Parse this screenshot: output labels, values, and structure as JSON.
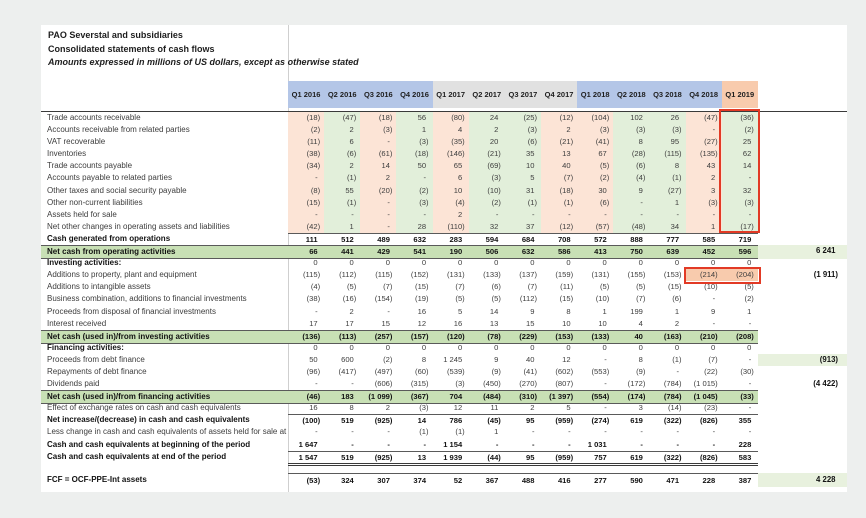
{
  "report": {
    "title": "PAO Severstal and subsidiaries",
    "subtitle": "Consolidated statements of cash flows",
    "note": "Amounts expressed in millions of US dollars, except as otherwise stated"
  },
  "colors": {
    "header_2016_2018": "#b4c6e7",
    "header_2017": "#e1e1e1",
    "header_q1_2019": "#f8cbad",
    "column_tint_pink": "#fce4d6",
    "column_tint_green": "#e2efda",
    "net_cash_band_green": "#c8e0b5",
    "total_cell_tint": "#e8f1de",
    "highlight_cell_peach": "#f8cbad",
    "annotation_red": "#e23a25"
  },
  "table": {
    "columns": [
      "Q1 2016",
      "Q2 2016",
      "Q3 2016",
      "Q4 2016",
      "Q1 2017",
      "Q2 2017",
      "Q3 2017",
      "Q4 2017",
      "Q1 2018",
      "Q2 2018",
      "Q3 2018",
      "Q4 2018",
      "Q1 2019"
    ],
    "column_groups": [
      "blue",
      "blue",
      "blue",
      "blue",
      "gray",
      "gray",
      "gray",
      "gray",
      "blue",
      "blue",
      "blue",
      "blue",
      "peach"
    ],
    "wc_column_tints": [
      "p",
      "g",
      "p",
      "g",
      "p",
      "g",
      "g",
      "p",
      "p",
      "g",
      "g",
      "p",
      "g"
    ],
    "rows": [
      {
        "label": "Trade accounts receivable",
        "kind": "wc",
        "values": [
          "(18)",
          "(47)",
          "(18)",
          "56",
          "(80)",
          "24",
          "(25)",
          "(12)",
          "(104)",
          "102",
          "26",
          "(47)",
          "(36)"
        ],
        "total": ""
      },
      {
        "label": "Accounts receivable from related parties",
        "kind": "wc",
        "values": [
          "(2)",
          "2",
          "(3)",
          "1",
          "4",
          "2",
          "(3)",
          "2",
          "(3)",
          "(3)",
          "(3)",
          "-",
          "(2)"
        ],
        "total": ""
      },
      {
        "label": "VAT recoverable",
        "kind": "wc",
        "values": [
          "(11)",
          "6",
          "-",
          "(3)",
          "(35)",
          "20",
          "(6)",
          "(21)",
          "(41)",
          "8",
          "95",
          "(27)",
          "25"
        ],
        "total": ""
      },
      {
        "label": "Inventories",
        "kind": "wc",
        "values": [
          "(38)",
          "(6)",
          "(61)",
          "(18)",
          "(146)",
          "(21)",
          "35",
          "13",
          "67",
          "(28)",
          "(115)",
          "(135)",
          "62"
        ],
        "total": ""
      },
      {
        "label": "Trade accounts payable",
        "kind": "wc",
        "values": [
          "(34)",
          "2",
          "14",
          "50",
          "65",
          "(69)",
          "10",
          "40",
          "(5)",
          "(6)",
          "8",
          "43",
          "14"
        ],
        "total": ""
      },
      {
        "label": "Accounts payable to related parties",
        "kind": "wc",
        "values": [
          "-",
          "(1)",
          "2",
          "-",
          "6",
          "(3)",
          "5",
          "(7)",
          "(2)",
          "(4)",
          "(1)",
          "2",
          "-"
        ],
        "total": ""
      },
      {
        "label": "Other taxes and social security payable",
        "kind": "wc",
        "values": [
          "(8)",
          "55",
          "(20)",
          "(2)",
          "10",
          "(10)",
          "31",
          "(18)",
          "30",
          "9",
          "(27)",
          "3",
          "32"
        ],
        "total": ""
      },
      {
        "label": "Other non-current liabilities",
        "kind": "wc",
        "values": [
          "(15)",
          "(1)",
          "-",
          "(3)",
          "(4)",
          "(2)",
          "(1)",
          "(1)",
          "(6)",
          "-",
          "1",
          "(3)",
          "(3)"
        ],
        "total": ""
      },
      {
        "label": "Assets held for sale",
        "kind": "wc",
        "values": [
          "-",
          "-",
          "-",
          "-",
          "2",
          "-",
          "-",
          "-",
          "-",
          "-",
          "-",
          "-",
          "-"
        ],
        "total": ""
      },
      {
        "label": "Net other changes in operating assets and liabilities",
        "kind": "wc",
        "values": [
          "(42)",
          "1",
          "-",
          "28",
          "(110)",
          "32",
          "37",
          "(12)",
          "(57)",
          "(48)",
          "34",
          "1",
          "(17)"
        ],
        "total": ""
      },
      {
        "label": "Cash generated from operations",
        "kind": "calc",
        "values": [
          "111",
          "512",
          "489",
          "632",
          "283",
          "594",
          "684",
          "708",
          "572",
          "888",
          "777",
          "585",
          "719"
        ],
        "total": ""
      },
      {
        "label": "Net cash from operating activities",
        "kind": "band",
        "values": [
          "66",
          "441",
          "429",
          "541",
          "190",
          "506",
          "632",
          "586",
          "413",
          "750",
          "639",
          "452",
          "596"
        ],
        "total": "6 241",
        "total_tinted": true
      },
      {
        "label": "Investing activities:",
        "kind": "section",
        "values": [
          "0",
          "0",
          "0",
          "0",
          "0",
          "0",
          "0",
          "0",
          "0",
          "0",
          "0",
          "0",
          "0"
        ],
        "total": ""
      },
      {
        "label": "Additions to property, plant and equipment",
        "kind": "plain",
        "values": [
          "(115)",
          "(112)",
          "(115)",
          "(152)",
          "(131)",
          "(133)",
          "(137)",
          "(159)",
          "(131)",
          "(155)",
          "(153)",
          "(214)",
          "(204)"
        ],
        "total": "(1 911)",
        "highlight_columns": [
          11,
          12
        ]
      },
      {
        "label": "Additions to intangible assets",
        "kind": "plain",
        "values": [
          "(4)",
          "(5)",
          "(7)",
          "(15)",
          "(7)",
          "(6)",
          "(7)",
          "(11)",
          "(5)",
          "(5)",
          "(15)",
          "(10)",
          "(5)"
        ],
        "total": ""
      },
      {
        "label": "Business combination, additions to financial investments",
        "kind": "plain",
        "values": [
          "(38)",
          "(16)",
          "(154)",
          "(19)",
          "(5)",
          "(5)",
          "(112)",
          "(15)",
          "(10)",
          "(7)",
          "(6)",
          "-",
          "(2)"
        ],
        "total": ""
      },
      {
        "label": "Proceeds from disposal of financial investments",
        "kind": "plain",
        "values": [
          "-",
          "2",
          "-",
          "16",
          "5",
          "14",
          "9",
          "8",
          "1",
          "199",
          "1",
          "9",
          "1"
        ],
        "total": ""
      },
      {
        "label": "Interest received",
        "kind": "plain",
        "values": [
          "17",
          "17",
          "15",
          "12",
          "16",
          "13",
          "15",
          "10",
          "10",
          "4",
          "2",
          "-",
          "-"
        ],
        "total": ""
      },
      {
        "label": "Net cash (used in)/from investing activities",
        "kind": "band",
        "values": [
          "(136)",
          "(113)",
          "(257)",
          "(157)",
          "(120)",
          "(78)",
          "(229)",
          "(153)",
          "(133)",
          "40",
          "(163)",
          "(210)",
          "(208)"
        ],
        "total": ""
      },
      {
        "label": "Financing activities:",
        "kind": "section",
        "values": [
          "0",
          "0",
          "0",
          "0",
          "0",
          "0",
          "0",
          "0",
          "0",
          "0",
          "0",
          "0",
          "0"
        ],
        "total": ""
      },
      {
        "label": "Proceeds from debt finance",
        "kind": "plain",
        "values": [
          "50",
          "600",
          "(2)",
          "8",
          "1 245",
          "9",
          "40",
          "12",
          "-",
          "8",
          "(1)",
          "(7)",
          "-"
        ],
        "total": "(913)",
        "total_tinted": true
      },
      {
        "label": "Repayments of debt finance",
        "kind": "plain",
        "values": [
          "(96)",
          "(417)",
          "(497)",
          "(60)",
          "(539)",
          "(9)",
          "(41)",
          "(602)",
          "(553)",
          "(9)",
          "-",
          "(22)",
          "(30)"
        ],
        "total": ""
      },
      {
        "label": "Dividends paid",
        "kind": "plain",
        "values": [
          "-",
          "-",
          "(606)",
          "(315)",
          "(3)",
          "(450)",
          "(270)",
          "(807)",
          "-",
          "(172)",
          "(784)",
          "(1 015)",
          "-"
        ],
        "total": "(4 422)"
      },
      {
        "label": "Net cash (used in)/from financing activities",
        "kind": "band",
        "values": [
          "(46)",
          "183",
          "(1 099)",
          "(367)",
          "704",
          "(484)",
          "(310)",
          "(1 397)",
          "(554)",
          "(174)",
          "(784)",
          "(1 045)",
          "(33)"
        ],
        "total": ""
      },
      {
        "label": "Effect of exchange rates on cash and cash equivalents",
        "kind": "plain",
        "values": [
          "16",
          "8",
          "2",
          "(3)",
          "12",
          "11",
          "2",
          "5",
          "-",
          "3",
          "(14)",
          "(23)",
          "-"
        ],
        "total": ""
      },
      {
        "label": "Net increase/(decrease) in cash and cash equivalents",
        "kind": "calc",
        "values": [
          "(100)",
          "519",
          "(925)",
          "14",
          "786",
          "(45)",
          "95",
          "(959)",
          "(274)",
          "619",
          "(322)",
          "(826)",
          "355"
        ],
        "total": ""
      },
      {
        "label": "Less change in cash and cash equivalents of assets held for sale at en",
        "kind": "plain",
        "values": [
          "-",
          "-",
          "-",
          "(1)",
          "(1)",
          "1",
          "-",
          "-",
          "-",
          "-",
          "-",
          "-",
          "-"
        ],
        "total": ""
      },
      {
        "label": "Cash and cash equivalents at beginning of the period",
        "kind": "boldplain",
        "values": [
          "1 647",
          "-",
          "-",
          "-",
          "1 154",
          "-",
          "-",
          "-",
          "1 031",
          "-",
          "-",
          "-",
          "228"
        ],
        "total": ""
      },
      {
        "label": "Cash and cash equivalents at end of the period",
        "kind": "final",
        "values": [
          "1 547",
          "519",
          "(925)",
          "13",
          "1 939",
          "(44)",
          "95",
          "(959)",
          "757",
          "619",
          "(322)",
          "(826)",
          "583"
        ],
        "total": ""
      },
      {
        "label": "FCF = OCF-PPE-Int assets",
        "kind": "fcf",
        "values": [
          "(53)",
          "324",
          "307",
          "374",
          "52",
          "367",
          "488",
          "416",
          "277",
          "590",
          "471",
          "228",
          "387"
        ],
        "total": "4 228",
        "total_tinted": true
      }
    ]
  }
}
